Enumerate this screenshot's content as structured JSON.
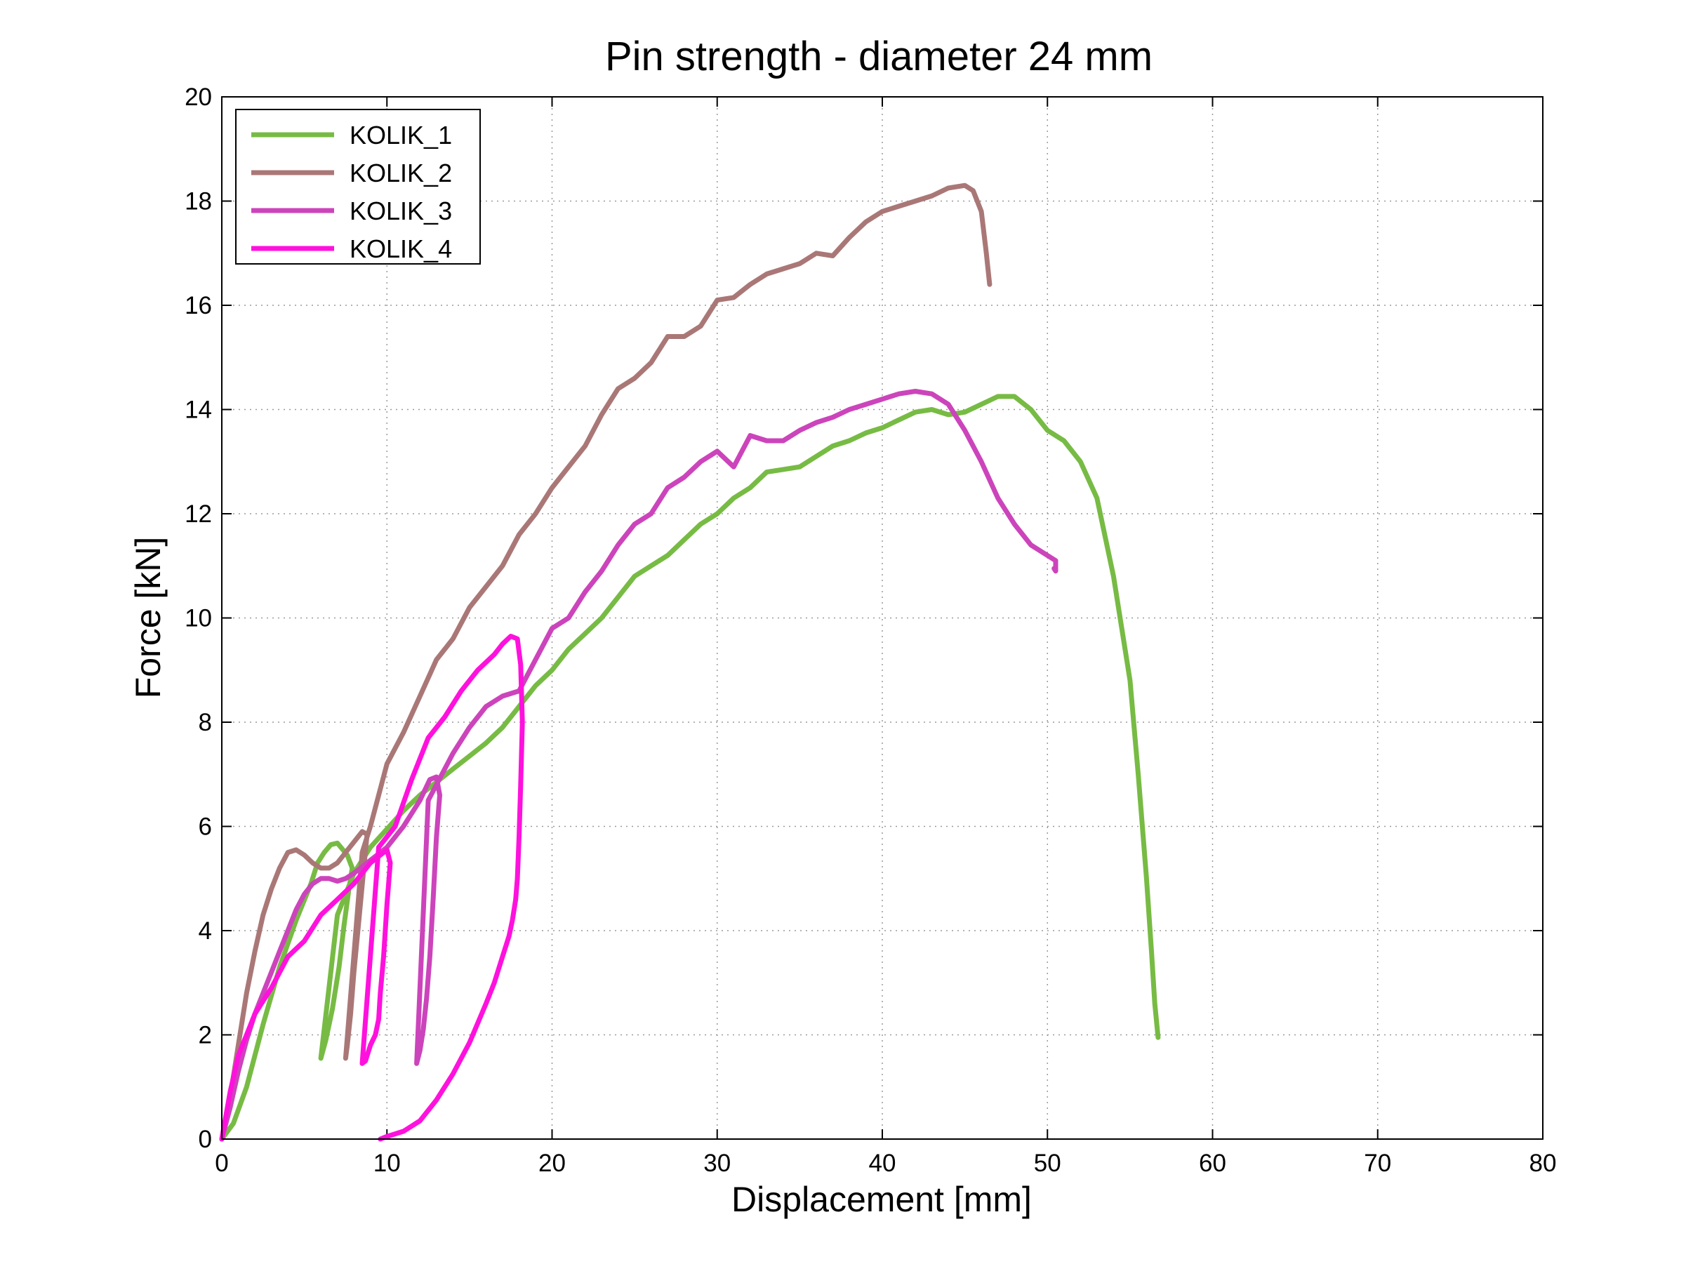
{
  "chart_data": {
    "type": "line",
    "title": "Pin strength - diameter 24 mm",
    "xlabel": "Displacement [mm]",
    "ylabel": "Force [kN]",
    "xlim": [
      0,
      80
    ],
    "ylim": [
      0,
      20
    ],
    "xticks": [
      "0",
      "10",
      "20",
      "30",
      "40",
      "50",
      "60",
      "70",
      "80"
    ],
    "yticks": [
      "0",
      "2",
      "4",
      "6",
      "8",
      "10",
      "12",
      "14",
      "16",
      "18",
      "20"
    ],
    "grid": true,
    "legend_position": "top-left",
    "series": [
      {
        "name": "KOLIK_1",
        "color": "#77bb44",
        "x": [
          0,
          0.7,
          1.5,
          2.5,
          3.5,
          4.5,
          5.4,
          5.8,
          6.2,
          6.6,
          7.0,
          7.6,
          7.9,
          7.7,
          7.4,
          7.1,
          6.7,
          6.3,
          6.0,
          7.0,
          8.0,
          9.0,
          10.0,
          11.0,
          12.0,
          13.0,
          14.0,
          15.0,
          16.0,
          17.0,
          18.0,
          19.0,
          20.0,
          21.0,
          22.0,
          23.0,
          24.0,
          25.0,
          26.0,
          27.0,
          28.0,
          29.0,
          30.0,
          31.0,
          32.0,
          33.0,
          34.0,
          35.0,
          36.0,
          37.0,
          38.0,
          39.0,
          40.0,
          41.0,
          42.0,
          43.0,
          44.0,
          45.0,
          46.0,
          47.0,
          48.0,
          49.0,
          50.0,
          51.0,
          52.0,
          53.0,
          54.0,
          55.0,
          55.5,
          56.0,
          56.3,
          56.5,
          56.7
        ],
        "values": [
          0,
          0.3,
          1.0,
          2.2,
          3.3,
          4.2,
          4.9,
          5.3,
          5.5,
          5.65,
          5.68,
          5.45,
          5.2,
          4.8,
          4.1,
          3.3,
          2.5,
          1.9,
          1.55,
          4.3,
          5.1,
          5.6,
          5.95,
          6.3,
          6.6,
          6.85,
          7.1,
          7.35,
          7.6,
          7.9,
          8.3,
          8.7,
          9.0,
          9.4,
          9.7,
          10.0,
          10.4,
          10.8,
          11.0,
          11.2,
          11.5,
          11.8,
          12.0,
          12.3,
          12.5,
          12.8,
          12.85,
          12.9,
          13.1,
          13.3,
          13.4,
          13.55,
          13.65,
          13.8,
          13.95,
          14.0,
          13.9,
          13.95,
          14.1,
          14.25,
          14.25,
          14.0,
          13.6,
          13.4,
          13.0,
          12.3,
          10.8,
          8.8,
          7.0,
          5.0,
          3.6,
          2.6,
          1.95
        ]
      },
      {
        "name": "KOLIK_2",
        "color": "#aa7777",
        "x": [
          0,
          0.5,
          1.0,
          1.5,
          2.0,
          2.5,
          3.0,
          3.5,
          4.0,
          4.5,
          5.0,
          5.5,
          6.0,
          6.5,
          7.0,
          7.5,
          8.0,
          8.5,
          8.8,
          8.6,
          8.3,
          8.0,
          7.8,
          7.6,
          7.5,
          8.5,
          9.0,
          10.0,
          11.0,
          12.0,
          13.0,
          14.0,
          15.0,
          16.0,
          17.0,
          18.0,
          19.0,
          20.0,
          21.0,
          22.0,
          23.0,
          24.0,
          25.0,
          26.0,
          27.0,
          28.0,
          29.0,
          30.0,
          31.0,
          32.0,
          33.0,
          34.0,
          35.0,
          36.0,
          37.0,
          38.0,
          39.0,
          40.0,
          41.0,
          42.0,
          43.0,
          44.0,
          45.0,
          45.5,
          46.0,
          46.3,
          46.5
        ],
        "values": [
          0,
          0.8,
          1.8,
          2.8,
          3.6,
          4.3,
          4.8,
          5.2,
          5.5,
          5.55,
          5.45,
          5.3,
          5.2,
          5.2,
          5.3,
          5.5,
          5.7,
          5.9,
          5.85,
          5.2,
          4.2,
          3.2,
          2.4,
          1.8,
          1.55,
          5.5,
          6.0,
          7.2,
          7.8,
          8.5,
          9.2,
          9.6,
          10.2,
          10.6,
          11.0,
          11.6,
          12.0,
          12.5,
          12.9,
          13.3,
          13.9,
          14.4,
          14.6,
          14.9,
          15.4,
          15.4,
          15.6,
          16.1,
          16.15,
          16.4,
          16.6,
          16.7,
          16.8,
          17.0,
          16.95,
          17.3,
          17.6,
          17.8,
          17.9,
          18.0,
          18.1,
          18.25,
          18.3,
          18.2,
          17.8,
          17.0,
          16.4
        ]
      },
      {
        "name": "KOLIK_3",
        "color": "#cc44bb",
        "x": [
          0,
          0.5,
          1.0,
          1.5,
          2.0,
          2.5,
          3.0,
          3.5,
          4.0,
          4.5,
          5.0,
          5.5,
          6.0,
          6.5,
          7.0,
          7.5,
          8.0,
          9.0,
          10.0,
          11.0,
          12.0,
          12.6,
          13.0,
          13.2,
          13.0,
          12.8,
          12.6,
          12.4,
          12.2,
          12.0,
          11.8,
          12.5,
          13.0,
          14.0,
          15.0,
          16.0,
          17.0,
          18.0,
          19.0,
          20.0,
          21.0,
          22.0,
          23.0,
          24.0,
          25.0,
          26.0,
          27.0,
          28.0,
          29.0,
          30.0,
          31.0,
          32.0,
          33.0,
          34.0,
          35.0,
          36.0,
          37.0,
          38.0,
          39.0,
          40.0,
          41.0,
          42.0,
          43.0,
          44.0,
          45.0,
          46.0,
          47.0,
          48.0,
          49.0,
          50.0,
          50.5,
          50.5,
          50.4
        ],
        "values": [
          0,
          0.6,
          1.3,
          1.9,
          2.4,
          2.8,
          3.2,
          3.6,
          4.0,
          4.4,
          4.7,
          4.9,
          5.0,
          5.0,
          4.95,
          5.0,
          5.1,
          5.35,
          5.6,
          6.0,
          6.5,
          6.9,
          6.95,
          6.6,
          5.8,
          4.6,
          3.5,
          2.7,
          2.1,
          1.7,
          1.45,
          6.5,
          6.8,
          7.4,
          7.9,
          8.3,
          8.5,
          8.6,
          9.2,
          9.8,
          10.0,
          10.5,
          10.9,
          11.4,
          11.8,
          12.0,
          12.5,
          12.7,
          13.0,
          13.2,
          12.9,
          13.5,
          13.4,
          13.4,
          13.6,
          13.75,
          13.85,
          14.0,
          14.1,
          14.2,
          14.3,
          14.35,
          14.3,
          14.1,
          13.6,
          13.0,
          12.3,
          11.8,
          11.4,
          11.2,
          11.1,
          10.9,
          10.95
        ]
      },
      {
        "name": "KOLIK_4",
        "color": "#ff11dd",
        "x": [
          0,
          0.5,
          1.0,
          1.5,
          2.0,
          3.0,
          4.0,
          5.0,
          6.0,
          7.0,
          8.0,
          9.0,
          9.8,
          10.0,
          10.2,
          10.0,
          9.8,
          9.6,
          9.5,
          9.3,
          9.0,
          8.8,
          8.7,
          8.5,
          9.5,
          10.5,
          11.5,
          12.5,
          13.5,
          14.5,
          15.5,
          16.5,
          17.0,
          17.5,
          17.9,
          18.1,
          18.2,
          18.1,
          18.0,
          17.9,
          17.8,
          17.6,
          17.4,
          17.2,
          17.0,
          16.8,
          16.5,
          16.0,
          15.0,
          14.0,
          13.0,
          12.0,
          11.0,
          10.0,
          9.6
        ],
        "values": [
          0,
          0.9,
          1.6,
          2.0,
          2.4,
          2.9,
          3.5,
          3.8,
          4.3,
          4.6,
          4.9,
          5.3,
          5.5,
          5.55,
          5.3,
          4.5,
          3.5,
          2.8,
          2.3,
          2.0,
          1.8,
          1.6,
          1.5,
          1.45,
          5.6,
          6.0,
          6.9,
          7.7,
          8.1,
          8.6,
          9.0,
          9.3,
          9.5,
          9.65,
          9.6,
          9.1,
          8.0,
          6.8,
          5.8,
          5.0,
          4.6,
          4.2,
          3.9,
          3.7,
          3.5,
          3.3,
          3.0,
          2.6,
          1.85,
          1.25,
          0.75,
          0.35,
          0.15,
          0.05,
          0
        ]
      }
    ]
  }
}
